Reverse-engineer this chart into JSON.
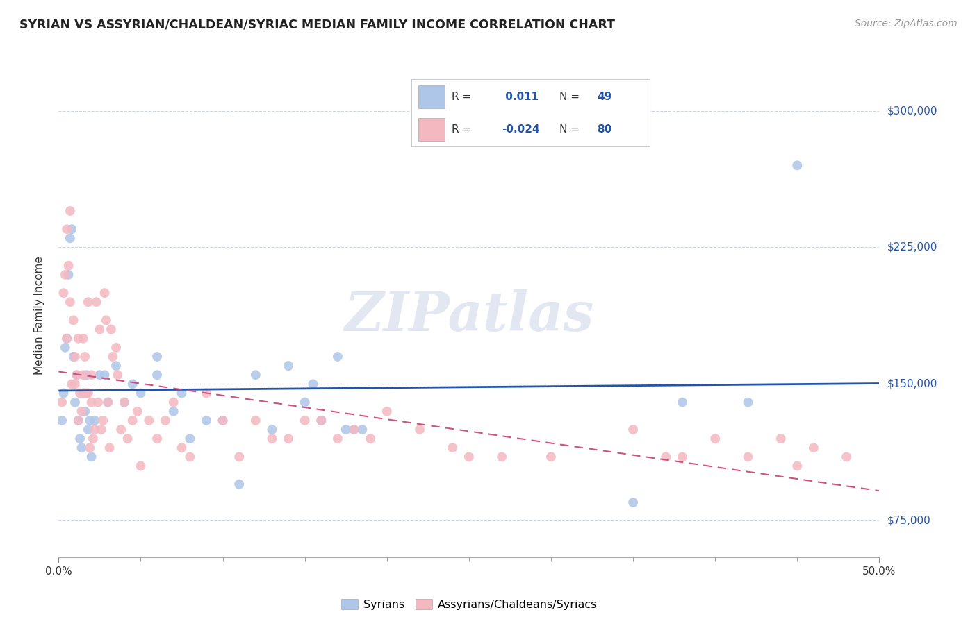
{
  "title": "SYRIAN VS ASSYRIAN/CHALDEAN/SYRIAC MEDIAN FAMILY INCOME CORRELATION CHART",
  "source": "Source: ZipAtlas.com",
  "ylabel": "Median Family Income",
  "xlim": [
    0.0,
    0.5
  ],
  "ylim": [
    55000,
    320000
  ],
  "yticks": [
    75000,
    150000,
    225000,
    300000
  ],
  "ytick_labels": [
    "$75,000",
    "$150,000",
    "$225,000",
    "$300,000"
  ],
  "xtick_left_label": "0.0%",
  "xtick_right_label": "50.0%",
  "syrians_color": "#aec6e8",
  "assyrians_color": "#f4b8c1",
  "syrians_line_color": "#2255aa",
  "assyrians_line_color": "#d05080",
  "R_syrians": 0.011,
  "N_syrians": 49,
  "R_assyrians": -0.024,
  "N_assyrians": 80,
  "watermark": "ZIPatlas",
  "background_color": "#ffffff",
  "grid_color": "#c8d0dc",
  "syrians_label": "Syrians",
  "assyrians_label": "Assyrians/Chaldeans/Syriacs",
  "syrians_x": [
    0.002,
    0.003,
    0.004,
    0.005,
    0.006,
    0.007,
    0.008,
    0.009,
    0.01,
    0.011,
    0.012,
    0.013,
    0.014,
    0.015,
    0.016,
    0.017,
    0.018,
    0.019,
    0.02,
    0.022,
    0.025,
    0.028,
    0.03,
    0.035,
    0.04,
    0.045,
    0.05,
    0.06,
    0.07,
    0.08,
    0.09,
    0.1,
    0.11,
    0.12,
    0.13,
    0.14,
    0.15,
    0.155,
    0.16,
    0.17,
    0.175,
    0.18,
    0.185,
    0.06,
    0.075,
    0.35,
    0.38,
    0.42,
    0.45
  ],
  "syrians_y": [
    130000,
    145000,
    170000,
    175000,
    210000,
    230000,
    235000,
    165000,
    140000,
    155000,
    130000,
    120000,
    115000,
    145000,
    135000,
    155000,
    125000,
    130000,
    110000,
    130000,
    155000,
    155000,
    140000,
    160000,
    140000,
    150000,
    145000,
    155000,
    135000,
    120000,
    130000,
    130000,
    95000,
    155000,
    125000,
    160000,
    140000,
    150000,
    130000,
    165000,
    125000,
    125000,
    125000,
    165000,
    145000,
    85000,
    140000,
    140000,
    270000
  ],
  "assyrians_x": [
    0.002,
    0.003,
    0.004,
    0.005,
    0.005,
    0.006,
    0.007,
    0.007,
    0.008,
    0.009,
    0.01,
    0.01,
    0.011,
    0.012,
    0.012,
    0.013,
    0.014,
    0.015,
    0.015,
    0.016,
    0.016,
    0.017,
    0.018,
    0.018,
    0.019,
    0.02,
    0.02,
    0.021,
    0.022,
    0.023,
    0.024,
    0.025,
    0.026,
    0.027,
    0.028,
    0.029,
    0.03,
    0.031,
    0.032,
    0.033,
    0.035,
    0.036,
    0.038,
    0.04,
    0.042,
    0.045,
    0.048,
    0.05,
    0.055,
    0.06,
    0.065,
    0.07,
    0.075,
    0.08,
    0.09,
    0.1,
    0.11,
    0.12,
    0.13,
    0.14,
    0.15,
    0.16,
    0.17,
    0.18,
    0.19,
    0.2,
    0.22,
    0.24,
    0.25,
    0.27,
    0.3,
    0.35,
    0.37,
    0.38,
    0.4,
    0.42,
    0.44,
    0.45,
    0.46,
    0.48
  ],
  "assyrians_y": [
    140000,
    200000,
    210000,
    235000,
    175000,
    215000,
    245000,
    195000,
    150000,
    185000,
    150000,
    165000,
    155000,
    175000,
    130000,
    145000,
    135000,
    175000,
    155000,
    165000,
    145000,
    145000,
    145000,
    195000,
    115000,
    155000,
    140000,
    120000,
    125000,
    195000,
    140000,
    180000,
    125000,
    130000,
    200000,
    185000,
    140000,
    115000,
    180000,
    165000,
    170000,
    155000,
    125000,
    140000,
    120000,
    130000,
    135000,
    105000,
    130000,
    120000,
    130000,
    140000,
    115000,
    110000,
    145000,
    130000,
    110000,
    130000,
    120000,
    120000,
    130000,
    130000,
    120000,
    125000,
    120000,
    135000,
    125000,
    115000,
    110000,
    110000,
    110000,
    125000,
    110000,
    110000,
    120000,
    110000,
    120000,
    105000,
    115000,
    110000
  ]
}
